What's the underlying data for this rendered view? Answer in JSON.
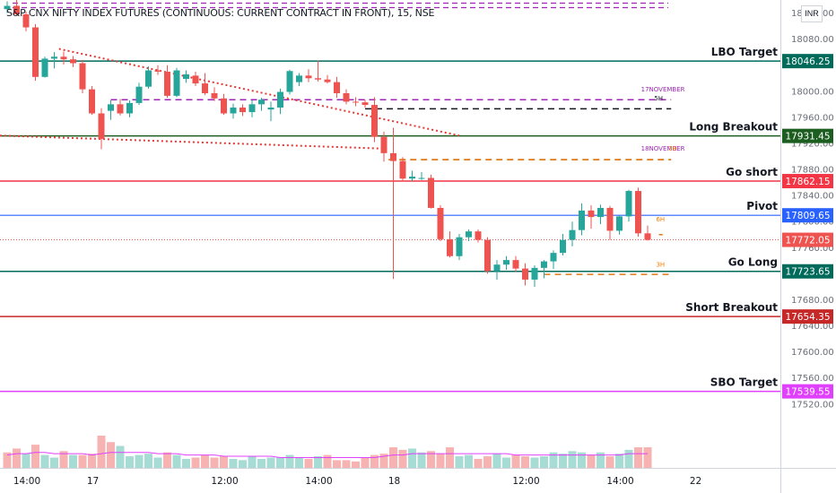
{
  "currency": "INR",
  "chart_data": {
    "type": "candlestick",
    "title": "S&P CNX NIFTY INDEX FUTURES (CONTINUOUS: CURRENT CONTRACT IN FRONT), 15, NSE",
    "ylim": [
      17473,
      18140
    ],
    "y_ticks": [
      18120,
      18080,
      18040,
      18000,
      17960,
      17920,
      17880,
      17840,
      17800,
      17760,
      17720,
      17680,
      17640,
      17600,
      17560,
      17520
    ],
    "x_ticks": [
      {
        "bar": 0,
        "label": "14:00"
      },
      {
        "bar": 7,
        "label": "17"
      },
      {
        "bar": 21,
        "label": "12:00"
      },
      {
        "bar": 31,
        "label": "14:00"
      },
      {
        "bar": 39,
        "label": "18"
      },
      {
        "bar": 53,
        "label": "12:00"
      },
      {
        "bar": 63,
        "label": "14:00"
      },
      {
        "bar": 71,
        "label": "22"
      }
    ],
    "levels": [
      {
        "name": "LBO Target",
        "value": 18046.25,
        "color": "#006b5b",
        "width": 1.5
      },
      {
        "name": "Long Breakout",
        "value": 17931.45,
        "color": "#1b5e20",
        "width": 1.5
      },
      {
        "name": "Go short",
        "value": 17862.15,
        "color": "#f23645",
        "width": 1.5
      },
      {
        "name": "Pivot",
        "value": 17809.65,
        "color": "#2962ff",
        "width": 1.2
      },
      {
        "name": "Go Long",
        "value": 17723.65,
        "color": "#006b5b",
        "width": 1.5
      },
      {
        "name": "Short Breakout",
        "value": 17654.35,
        "color": "#c62828",
        "width": 1.5
      },
      {
        "name": "SBO Target",
        "value": 17539.55,
        "color": "#e040fb",
        "width": 1.5
      }
    ],
    "last_price": {
      "value": 17772.05,
      "color": "#ef5350"
    },
    "annotations": [
      {
        "text": "17NOVEMBER",
        "bar": 67.3,
        "value": 18000,
        "color": "#9c27b0"
      },
      {
        "text": "5H",
        "bar": 68.7,
        "value": 17986,
        "color": "#131722"
      },
      {
        "text": "18NOVEMBER",
        "bar": 67.3,
        "value": 17909,
        "color": "#9c27b0"
      },
      {
        "text": "3H",
        "bar": 70.2,
        "value": 17909,
        "color": "#f57c00"
      },
      {
        "text": "6H",
        "bar": 68.9,
        "value": 17800,
        "color": "#f57c00"
      },
      {
        "text": "3H",
        "bar": 68.9,
        "value": 17731,
        "color": "#f57c00"
      }
    ],
    "candles": [
      [
        18126,
        18138,
        18120,
        18131
      ],
      [
        18131,
        18140,
        18116,
        18118
      ],
      [
        18118,
        18122,
        18092,
        18098
      ],
      [
        18098,
        18103,
        18016,
        18022
      ],
      [
        18022,
        18053,
        18021,
        18050
      ],
      [
        18050,
        18060,
        18035,
        18053
      ],
      [
        18053,
        18061,
        18041,
        18049
      ],
      [
        18049,
        18054,
        18037,
        18043
      ],
      [
        18043,
        18048,
        17997,
        18003
      ],
      [
        18003,
        18008,
        17964,
        17966
      ],
      [
        17966,
        17974,
        17911,
        17927
      ],
      [
        17970,
        17986,
        17956,
        17980
      ],
      [
        17980,
        17988,
        17963,
        17966
      ],
      [
        17966,
        17986,
        17960,
        17982
      ],
      [
        17982,
        18013,
        17979,
        18007
      ],
      [
        18007,
        18038,
        18004,
        18032
      ],
      [
        18032,
        18040,
        18025,
        18030
      ],
      [
        18030,
        18040,
        17990,
        17993
      ],
      [
        17993,
        18036,
        17991,
        18032
      ],
      [
        18019,
        18032,
        18013,
        18026
      ],
      [
        18024,
        18030,
        18008,
        18012
      ],
      [
        18012,
        18028,
        17994,
        17997
      ],
      [
        17997,
        18006,
        17985,
        17989
      ],
      [
        17989,
        17996,
        17964,
        17966
      ],
      [
        17966,
        17981,
        17958,
        17975
      ],
      [
        17975,
        17980,
        17962,
        17968
      ],
      [
        17968,
        17986,
        17960,
        17980
      ],
      [
        17980,
        17990,
        17970,
        17987
      ],
      [
        17972,
        17984,
        17954,
        17975
      ],
      [
        17975,
        18004,
        17965,
        17999
      ],
      [
        17999,
        18033,
        17995,
        18031
      ],
      [
        18014,
        18028,
        18008,
        18024
      ],
      [
        18024,
        18034,
        18014,
        18020
      ],
      [
        18020,
        18047,
        18015,
        18018
      ],
      [
        18018,
        18025,
        18012,
        18014
      ],
      [
        18014,
        18022,
        17990,
        17997
      ],
      [
        17997,
        18003,
        17980,
        17984
      ],
      [
        17984,
        17991,
        17977,
        17983
      ],
      [
        17983,
        17987,
        17975,
        17979
      ],
      [
        17979,
        17991,
        17922,
        17930
      ],
      [
        17930,
        17938,
        17892,
        17905
      ],
      [
        17905,
        17944,
        17712,
        17893
      ],
      [
        17893,
        17899,
        17862,
        17866
      ],
      [
        17866,
        17878,
        17862,
        17869
      ],
      [
        17866,
        17876,
        17864,
        17867
      ],
      [
        17867,
        17872,
        17820,
        17821
      ],
      [
        17821,
        17825,
        17770,
        17773
      ],
      [
        17773,
        17785,
        17745,
        17747
      ],
      [
        17747,
        17781,
        17741,
        17776
      ],
      [
        17776,
        17788,
        17770,
        17785
      ],
      [
        17785,
        17788,
        17768,
        17772
      ],
      [
        17772,
        17776,
        17720,
        17724
      ],
      [
        17724,
        17741,
        17711,
        17734
      ],
      [
        17734,
        17747,
        17726,
        17741
      ],
      [
        17741,
        17747,
        17723,
        17728
      ],
      [
        17728,
        17736,
        17702,
        17711
      ],
      [
        17711,
        17733,
        17700,
        17729
      ],
      [
        17729,
        17741,
        17713,
        17739
      ],
      [
        17739,
        17756,
        17727,
        17752
      ],
      [
        17752,
        17781,
        17748,
        17772
      ],
      [
        17772,
        17800,
        17762,
        17787
      ],
      [
        17787,
        17828,
        17779,
        17817
      ],
      [
        17817,
        17825,
        17789,
        17807
      ],
      [
        17807,
        17826,
        17796,
        17821
      ],
      [
        17821,
        17824,
        17772,
        17786
      ],
      [
        17786,
        17810,
        17780,
        17808
      ],
      [
        17808,
        17849,
        17800,
        17847
      ],
      [
        17847,
        17852,
        17777,
        17782
      ],
      [
        17782,
        17794,
        17771,
        17772
      ]
    ],
    "volume": [
      [
        12,
        "down"
      ],
      [
        15,
        "down"
      ],
      [
        11,
        "up"
      ],
      [
        18,
        "down"
      ],
      [
        10,
        "up"
      ],
      [
        8,
        "up"
      ],
      [
        13,
        "down"
      ],
      [
        10,
        "up"
      ],
      [
        10,
        "down"
      ],
      [
        11,
        "down"
      ],
      [
        25,
        "down"
      ],
      [
        20,
        "down"
      ],
      [
        17,
        "up"
      ],
      [
        9,
        "up"
      ],
      [
        10,
        "up"
      ],
      [
        11,
        "up"
      ],
      [
        8,
        "up"
      ],
      [
        12,
        "down"
      ],
      [
        10,
        "up"
      ],
      [
        7,
        "up"
      ],
      [
        8,
        "down"
      ],
      [
        10,
        "down"
      ],
      [
        8,
        "down"
      ],
      [
        9,
        "down"
      ],
      [
        7,
        "up"
      ],
      [
        6,
        "up"
      ],
      [
        9,
        "up"
      ],
      [
        7,
        "up"
      ],
      [
        8,
        "up"
      ],
      [
        8,
        "up"
      ],
      [
        10,
        "up"
      ],
      [
        8,
        "up"
      ],
      [
        7,
        "down"
      ],
      [
        9,
        "up"
      ],
      [
        10,
        "down"
      ],
      [
        6,
        "down"
      ],
      [
        6,
        "down"
      ],
      [
        5,
        "down"
      ],
      [
        8,
        "down"
      ],
      [
        10,
        "down"
      ],
      [
        11,
        "down"
      ],
      [
        16,
        "down"
      ],
      [
        14,
        "down"
      ],
      [
        15,
        "up"
      ],
      [
        12,
        "up"
      ],
      [
        13,
        "down"
      ],
      [
        11,
        "down"
      ],
      [
        16,
        "down"
      ],
      [
        9,
        "up"
      ],
      [
        10,
        "up"
      ],
      [
        7,
        "down"
      ],
      [
        9,
        "down"
      ],
      [
        11,
        "up"
      ],
      [
        8,
        "up"
      ],
      [
        10,
        "down"
      ],
      [
        9,
        "down"
      ],
      [
        8,
        "up"
      ],
      [
        9,
        "up"
      ],
      [
        12,
        "up"
      ],
      [
        11,
        "up"
      ],
      [
        13,
        "up"
      ],
      [
        12,
        "up"
      ],
      [
        10,
        "down"
      ],
      [
        12,
        "up"
      ],
      [
        9,
        "down"
      ],
      [
        11,
        "up"
      ],
      [
        14,
        "up"
      ],
      [
        16,
        "down"
      ],
      [
        16,
        "down"
      ]
    ],
    "volume_ma": [
      10,
      11,
      11,
      12,
      12,
      11,
      11,
      11,
      11,
      10,
      11,
      12,
      12,
      12,
      12,
      12,
      11,
      11,
      11,
      10,
      10,
      10,
      10,
      9,
      9,
      9,
      9,
      9,
      9,
      8,
      8,
      8,
      8,
      8,
      8,
      8,
      8,
      8,
      8,
      8,
      9,
      10,
      10,
      11,
      11,
      11,
      11,
      11,
      11,
      11,
      11,
      11,
      11,
      11,
      10,
      10,
      10,
      10,
      10,
      10,
      10,
      10,
      10,
      10,
      10,
      10,
      11,
      11,
      11
    ],
    "up_color": "#26a69a",
    "down_color": "#ef5350"
  }
}
